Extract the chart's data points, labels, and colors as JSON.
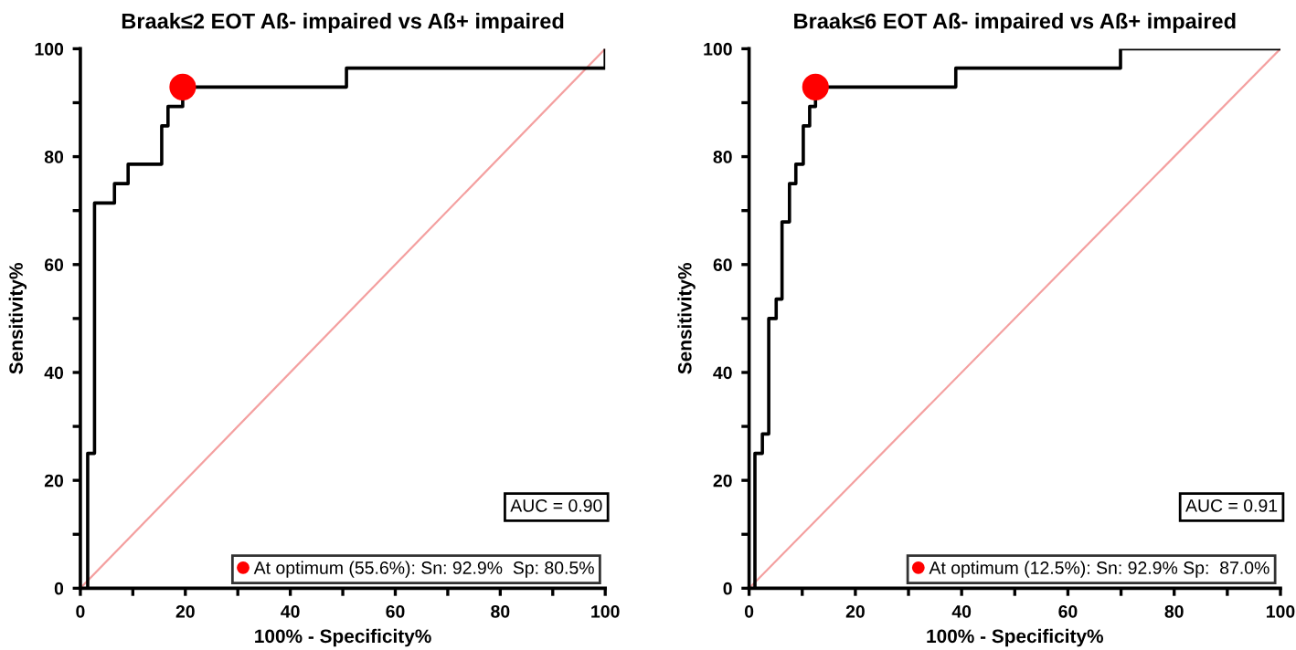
{
  "chart_data": [
    {
      "type": "line",
      "title": "Braak≤2 EOT Aß- impaired vs Aß+ impaired",
      "xlabel": "100% - Specificity%",
      "ylabel": "Sensitivity%",
      "xlim": [
        0,
        100
      ],
      "ylim": [
        0,
        100
      ],
      "xticks": [
        0,
        {
          "value": 10,
          "label": null
        },
        20,
        {
          "value": 30,
          "label": null
        },
        40,
        {
          "value": 50,
          "label": null
        },
        60,
        {
          "value": 70,
          "label": null
        },
        80,
        {
          "value": 90,
          "label": null
        },
        100
      ],
      "yticks": [
        0,
        {
          "value": 10,
          "label": null
        },
        20,
        {
          "value": 30,
          "label": null
        },
        40,
        {
          "value": 50,
          "label": null
        },
        60,
        {
          "value": 70,
          "label": null
        },
        80,
        {
          "value": 90,
          "label": null
        },
        100
      ],
      "grid": false,
      "legend": "bottom right",
      "annotations": [
        "AUC = 0.90"
      ],
      "series": [
        {
          "type": "step",
          "color": "#000000",
          "x": [
            1.4,
            1.4,
            2.7,
            6.5,
            9.1,
            15.5,
            16.7,
            19.5,
            50.7,
            100
          ],
          "values": [
            0,
            25,
            71.4,
            75,
            78.6,
            85.7,
            89.3,
            92.9,
            96.4,
            100
          ]
        },
        {
          "color": "#f4a0a0",
          "x": [
            0,
            100
          ],
          "values": [
            0,
            100
          ]
        },
        {
          "type": "scatter",
          "name": "At optimum (55.6%): Sn: 92.9%  Sp: 80.5%",
          "color": "#ff0000",
          "marker": "circle",
          "x": [
            19.5
          ],
          "values": [
            92.9
          ]
        }
      ]
    },
    {
      "type": "line",
      "title": "Braak≤6 EOT Aß- impaired vs Aß+ impaired",
      "xlabel": "100% - Specificity%",
      "ylabel": "Sensitivity%",
      "xlim": [
        0,
        100
      ],
      "ylim": [
        0,
        100
      ],
      "xticks": [
        0,
        {
          "value": 10,
          "label": null
        },
        20,
        {
          "value": 30,
          "label": null
        },
        40,
        {
          "value": 50,
          "label": null
        },
        60,
        {
          "value": 70,
          "label": null
        },
        80,
        {
          "value": 90,
          "label": null
        },
        100
      ],
      "yticks": [
        0,
        {
          "value": 10,
          "label": null
        },
        20,
        {
          "value": 30,
          "label": null
        },
        40,
        {
          "value": 50,
          "label": null
        },
        60,
        {
          "value": 70,
          "label": null
        },
        80,
        {
          "value": 90,
          "label": null
        },
        100
      ],
      "grid": false,
      "legend": "bottom right",
      "annotations": [
        "AUC = 0.91"
      ],
      "series": [
        {
          "type": "step",
          "color": "#000000",
          "x": [
            1.1,
            1.1,
            2.5,
            3.7,
            5.1,
            6.2,
            7.6,
            8.8,
            10.2,
            11.4,
            12.5,
            38.9,
            69.9,
            100
          ],
          "values": [
            0,
            25,
            28.6,
            50,
            53.6,
            67.9,
            75,
            78.6,
            85.7,
            89.3,
            92.9,
            96.4,
            100,
            100
          ]
        },
        {
          "color": "#f4a0a0",
          "x": [
            0,
            100
          ],
          "values": [
            0,
            100
          ]
        },
        {
          "type": "scatter",
          "name": "At optimum (12.5%): Sn: 92.9% Sp:  87.0%",
          "color": "#ff0000",
          "marker": "circle",
          "x": [
            12.5
          ],
          "values": [
            92.9
          ]
        }
      ]
    }
  ]
}
